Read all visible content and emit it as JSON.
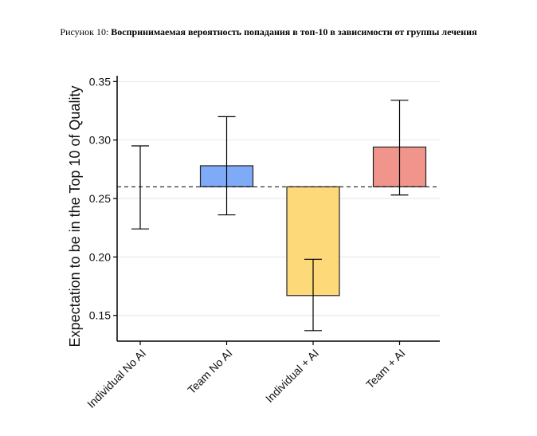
{
  "caption": {
    "prefix": "Рисунок 10: ",
    "title": "Воспринимаемая вероятность попадания в топ-10 в зависимости от группы лечения"
  },
  "chart_data": {
    "type": "bar",
    "title": "",
    "xlabel": "",
    "ylabel": "Expectation to be in the Top 10 of Quality",
    "categories": [
      "Individual No AI",
      "Team No AI",
      "Individual + AI",
      "Team + AI"
    ],
    "baseline": 0.26,
    "values": [
      0.26,
      0.278,
      0.167,
      0.294
    ],
    "ci_low": [
      0.224,
      0.236,
      0.137,
      0.253
    ],
    "ci_high": [
      0.295,
      0.32,
      0.198,
      0.334
    ],
    "colors": [
      "#ffffff",
      "#7eaaf7",
      "#fdd97a",
      "#f1958c"
    ],
    "ylim": [
      0.128,
      0.355
    ],
    "yticks": [
      0.15,
      0.2,
      0.25,
      0.3,
      0.35
    ],
    "ytick_labels": [
      "0.15",
      "0.20",
      "0.25",
      "0.30",
      "0.35"
    ],
    "grid": true,
    "legend": "none"
  }
}
